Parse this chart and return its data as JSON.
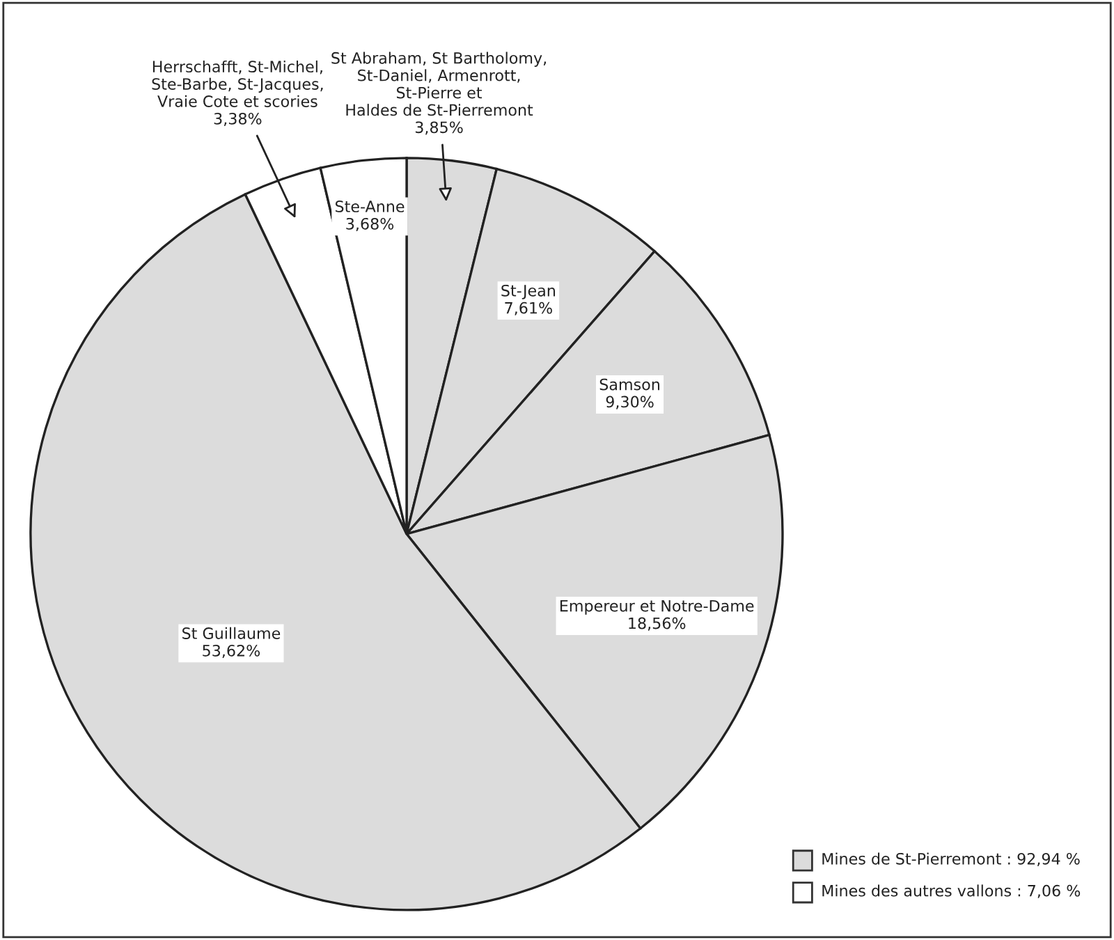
{
  "chart_data": {
    "type": "pie",
    "categories": [
      "St Abraham, St Bartholomy,\nSt-Daniel, Armenrott,\nSt-Pierre et\nHaldes de St-Pierremont",
      "St-Jean",
      "Samson",
      "Empereur et Notre-Dame",
      "St Guillaume",
      "Herrschafft, St-Michel,\nSte-Barbe, St-Jacques,\nVraie Cote et scories",
      "Ste-Anne"
    ],
    "values": [
      3.85,
      7.61,
      9.3,
      18.56,
      53.62,
      3.38,
      3.68
    ],
    "value_labels": [
      "3,85%",
      "7,61%",
      "9,30%",
      "18,56%",
      "53,62%",
      "3,38%",
      "3,68%"
    ],
    "colors": [
      "#dcdcdc",
      "#dcdcdc",
      "#dcdcdc",
      "#dcdcdc",
      "#dcdcdc",
      "#ffffff",
      "#ffffff"
    ],
    "annotations": [
      "Mines de St-Pierremont : 92,94 %",
      "Mines des autres vallons : 7,06 %"
    ]
  }
}
